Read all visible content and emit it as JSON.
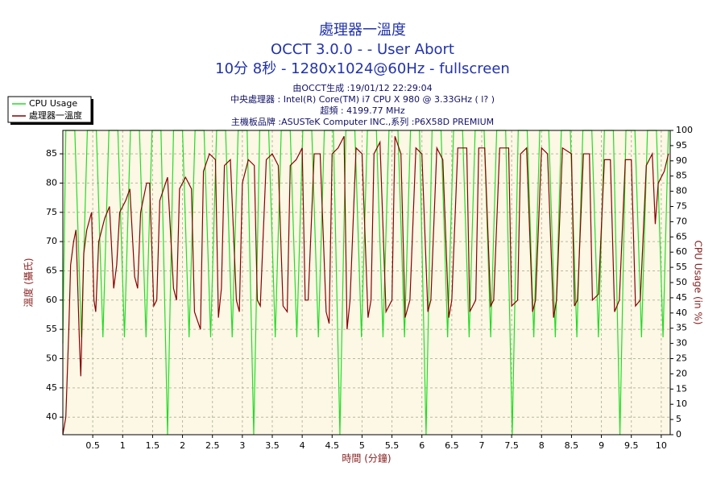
{
  "chart_data": {
    "type": "line",
    "title_lines": [
      "處理器一溫度",
      "OCCT 3.0.0 -  - User Abort",
      "10分 8秒 - 1280x1024@60Hz - fullscreen"
    ],
    "info_lines": [
      "由OCCT生成 :19/01/12 22:29:04",
      "中央處理器 : Intel(R) Core(TM) i7 CPU X 980 @ 3.33GHz (  l? )",
      "超頻 : 4199.77 MHz",
      "主機板品牌 :ASUSTeK Computer INC.,系列 :P6X58D PREMIUM"
    ],
    "xlabel": "時間 (分鐘)",
    "ylabel": "溫度 (攝氏)",
    "y2label": "CPU Usage (in %)",
    "xlim": [
      0,
      10.15
    ],
    "ylim": [
      37,
      89
    ],
    "y2lim": [
      0,
      100
    ],
    "xticks": [
      0.5,
      1,
      1.5,
      2,
      2.5,
      3,
      3.5,
      4,
      4.5,
      5,
      5.5,
      6,
      6.5,
      7,
      7.5,
      8,
      8.5,
      9,
      9.5,
      10
    ],
    "yticks": [
      40,
      45,
      50,
      55,
      60,
      65,
      70,
      75,
      80,
      85
    ],
    "y2ticks": [
      0,
      5,
      10,
      15,
      20,
      25,
      30,
      35,
      40,
      45,
      50,
      55,
      60,
      65,
      70,
      75,
      80,
      85,
      90,
      95,
      100
    ],
    "grid": true,
    "legend": "top-left",
    "series": [
      {
        "name": "CPU Usage",
        "color": "#22dd22",
        "axis": "y2",
        "x": [
          0,
          0.05,
          0.2,
          0.31,
          0.41,
          0.56,
          0.67,
          0.77,
          0.92,
          1.03,
          1.13,
          1.28,
          1.39,
          1.49,
          1.64,
          1.75,
          1.85,
          2.0,
          2.11,
          2.21,
          2.36,
          2.47,
          2.57,
          2.72,
          2.83,
          2.93,
          3.08,
          3.19,
          3.29,
          3.44,
          3.55,
          3.65,
          3.8,
          3.91,
          4.01,
          4.16,
          4.27,
          4.37,
          4.52,
          4.63,
          4.73,
          4.88,
          4.99,
          5.09,
          5.24,
          5.35,
          5.45,
          5.6,
          5.71,
          5.81,
          5.96,
          6.07,
          6.17,
          6.32,
          6.43,
          6.53,
          6.68,
          6.79,
          6.89,
          7.04,
          7.15,
          7.25,
          7.4,
          7.51,
          7.61,
          7.76,
          7.87,
          7.97,
          8.12,
          8.23,
          8.33,
          8.48,
          8.59,
          8.69,
          8.84,
          8.95,
          9.05,
          9.2,
          9.31,
          9.41,
          9.56,
          9.67,
          9.77,
          9.92,
          10.03,
          10.12
        ],
        "values": [
          30,
          100,
          100,
          32,
          100,
          100,
          32,
          100,
          100,
          32,
          100,
          100,
          32,
          100,
          100,
          0,
          100,
          100,
          32,
          100,
          100,
          32,
          100,
          100,
          32,
          100,
          100,
          0,
          100,
          100,
          32,
          100,
          100,
          32,
          100,
          100,
          32,
          100,
          100,
          0,
          100,
          100,
          32,
          100,
          100,
          32,
          100,
          100,
          32,
          100,
          100,
          0,
          100,
          100,
          32,
          100,
          100,
          32,
          100,
          100,
          32,
          100,
          100,
          0,
          100,
          100,
          32,
          100,
          100,
          32,
          100,
          100,
          32,
          100,
          100,
          32,
          100,
          100,
          0,
          100,
          100,
          32,
          100,
          100,
          32,
          100
        ]
      },
      {
        "name": "處理器一溫度",
        "color": "#880000",
        "axis": "y",
        "x": [
          0,
          0.05,
          0.1,
          0.13,
          0.18,
          0.22,
          0.28,
          0.3,
          0.35,
          0.4,
          0.48,
          0.52,
          0.55,
          0.6,
          0.7,
          0.78,
          0.85,
          0.9,
          0.95,
          1.05,
          1.12,
          1.2,
          1.25,
          1.3,
          1.4,
          1.45,
          1.52,
          1.57,
          1.62,
          1.75,
          1.85,
          1.9,
          1.95,
          2.05,
          2.15,
          2.2,
          2.3,
          2.35,
          2.45,
          2.55,
          2.6,
          2.65,
          2.7,
          2.8,
          2.9,
          2.95,
          3.0,
          3.1,
          3.2,
          3.25,
          3.3,
          3.4,
          3.5,
          3.6,
          3.68,
          3.75,
          3.8,
          3.9,
          4.0,
          4.05,
          4.1,
          4.2,
          4.3,
          4.4,
          4.45,
          4.5,
          4.6,
          4.7,
          4.75,
          4.8,
          4.9,
          5.0,
          5.1,
          5.15,
          5.2,
          5.3,
          5.4,
          5.5,
          5.55,
          5.65,
          5.72,
          5.8,
          5.9,
          6.0,
          6.1,
          6.15,
          6.25,
          6.35,
          6.45,
          6.5,
          6.6,
          6.75,
          6.8,
          6.9,
          6.95,
          7.05,
          7.15,
          7.2,
          7.3,
          7.45,
          7.5,
          7.6,
          7.65,
          7.75,
          7.85,
          7.9,
          8.0,
          8.1,
          8.2,
          8.25,
          8.35,
          8.5,
          8.55,
          8.6,
          8.7,
          8.8,
          8.85,
          8.95,
          9.05,
          9.15,
          9.22,
          9.3,
          9.4,
          9.5,
          9.57,
          9.65,
          9.75,
          9.85,
          9.9,
          9.95,
          10.05,
          10.12
        ],
        "values": [
          37,
          40,
          55,
          66,
          70,
          72,
          52,
          47,
          68,
          72,
          75,
          60,
          58,
          70,
          74,
          76,
          62,
          66,
          75,
          77,
          79,
          64,
          62,
          75,
          80,
          80,
          59,
          60,
          77,
          81,
          62,
          60,
          79,
          81,
          79,
          58,
          55,
          82,
          85,
          84,
          57,
          62,
          83,
          84,
          60,
          58,
          80,
          84,
          83,
          60,
          59,
          84,
          85,
          83,
          59,
          58,
          83,
          84,
          86,
          60,
          60,
          85,
          85,
          58,
          56,
          85,
          86,
          88,
          55,
          60,
          86,
          85,
          57,
          60,
          85,
          87,
          58,
          60,
          88,
          85,
          57,
          60,
          86,
          85,
          58,
          60,
          86,
          84,
          57,
          60,
          86,
          86,
          58,
          60,
          86,
          86,
          59,
          60,
          86,
          86,
          59,
          60,
          85,
          86,
          58,
          60,
          86,
          85,
          57,
          60,
          86,
          85,
          59,
          60,
          85,
          85,
          60,
          61,
          84,
          84,
          58,
          60,
          84,
          84,
          59,
          60,
          83,
          85,
          73,
          80,
          82,
          85
        ]
      }
    ]
  }
}
